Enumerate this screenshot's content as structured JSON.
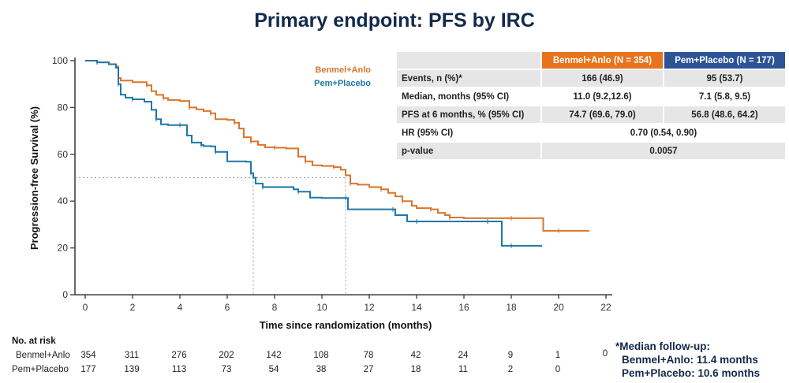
{
  "title": "Primary endpoint: PFS by IRC",
  "chart_data": {
    "type": "line",
    "subtype": "kaplan-meier-step",
    "title": "Primary endpoint: PFS by IRC",
    "xlabel": "Time since randomization (months)",
    "ylabel": "Progression-free Survival (%)",
    "xlim": [
      0,
      22
    ],
    "ylim": [
      0,
      100
    ],
    "xticks": [
      0,
      2,
      4,
      6,
      8,
      10,
      12,
      14,
      16,
      18,
      20,
      22
    ],
    "yticks": [
      0,
      20,
      40,
      60,
      80,
      100
    ],
    "grid": false,
    "legend_position": "top-right",
    "median_reference": {
      "y": 50,
      "x_values": [
        7.1,
        11.0
      ]
    },
    "series": [
      {
        "name": "Benmel+Anlo",
        "color": "#d9762b",
        "x": [
          0,
          0.5,
          1.0,
          1.3,
          1.4,
          1.5,
          2.0,
          2.6,
          2.8,
          3.0,
          3.3,
          3.5,
          4.0,
          4.4,
          4.7,
          5.0,
          5.3,
          5.5,
          6.0,
          6.3,
          6.5,
          6.7,
          7.0,
          7.3,
          7.6,
          8.0,
          8.5,
          9.0,
          9.3,
          9.6,
          10.0,
          10.5,
          10.8,
          11.0,
          11.2,
          11.5,
          12.0,
          12.5,
          12.8,
          13.1,
          13.4,
          13.8,
          14.0,
          14.6,
          14.9,
          15.2,
          15.4,
          16.0,
          17.0,
          18.0,
          19.3,
          19.35,
          20.0,
          21.3
        ],
        "y": [
          100,
          99.3,
          98.5,
          97.5,
          92.6,
          91.5,
          90.8,
          89.5,
          87,
          85.4,
          84,
          83.2,
          82.8,
          80,
          79.2,
          78.5,
          77.5,
          75,
          74.7,
          73.5,
          71,
          67.3,
          65.5,
          64,
          63,
          62.8,
          62.5,
          59,
          57,
          55.3,
          55,
          54.5,
          53.4,
          51,
          47.5,
          47,
          46,
          45,
          43.5,
          42,
          40,
          38,
          37,
          36.5,
          35,
          34,
          33,
          32.7,
          32.7,
          32.7,
          32.7,
          27.3,
          27.3,
          27.3
        ]
      },
      {
        "name": "Pem+Placebo",
        "color": "#1f77a8",
        "x": [
          0,
          0.5,
          1.0,
          1.3,
          1.4,
          1.5,
          1.7,
          2.0,
          2.5,
          2.8,
          3.0,
          3.2,
          3.5,
          4.0,
          4.3,
          4.5,
          4.9,
          5.0,
          5.3,
          5.5,
          6.0,
          6.8,
          7.0,
          7.1,
          7.2,
          7.5,
          8.0,
          8.8,
          9.0,
          9.5,
          10.0,
          11.0,
          11.1,
          12.0,
          13.0,
          13.1,
          13.6,
          14.0,
          15.0,
          16.0,
          17.0,
          17.5,
          17.6,
          18.0,
          19.3
        ],
        "y": [
          100,
          99.3,
          98.5,
          97,
          90,
          85.5,
          84.2,
          83.5,
          82.5,
          79,
          75,
          72.8,
          72.5,
          72.5,
          68,
          65,
          64,
          63.5,
          63.4,
          61,
          57,
          56.8,
          52,
          50,
          47.5,
          46,
          46,
          45,
          44,
          41.5,
          41.3,
          41.3,
          36.5,
          36.5,
          36.5,
          34,
          31.3,
          31.3,
          31.3,
          31.3,
          31.3,
          31.3,
          20.9,
          20.9,
          20.9
        ]
      }
    ],
    "at_risk": {
      "header": "No. at risk",
      "times": [
        0,
        2,
        4,
        6,
        8,
        10,
        12,
        14,
        16,
        18,
        20,
        22
      ],
      "rows": [
        {
          "name": "Benmel+Anlo",
          "values": [
            354,
            311,
            276,
            202,
            142,
            108,
            78,
            42,
            24,
            9,
            1,
            0
          ]
        },
        {
          "name": "Pem+Placebo",
          "values": [
            177,
            139,
            113,
            73,
            54,
            38,
            27,
            18,
            11,
            2,
            0,
            null
          ]
        }
      ]
    }
  },
  "stats_table": {
    "headers": [
      "",
      "Benmel+Anlo (N  = 354)",
      "Pem+Placebo (N = 177)"
    ],
    "header_colors": {
      "benmel": "#e8731c",
      "pem": "#2d5497"
    },
    "rows": [
      {
        "label": "Events, n (%)*",
        "benmel": "166 (46.9)",
        "pem": "95 (53.7)"
      },
      {
        "label": "Median, months (95% CI)",
        "benmel": "11.0 (9.2,12.6)",
        "pem": "7.1 (5.8, 9.5)"
      },
      {
        "label": "PFS at 6 months, % (95% CI)",
        "benmel": "74.7 (69.6, 79.0)",
        "pem": "56.8 (48.6, 64.2)"
      },
      {
        "label": "HR (95% CI)",
        "combined": "0.70 (0.54, 0.90)"
      },
      {
        "label": "p-value",
        "combined": "0.0057"
      }
    ]
  },
  "footnote": {
    "line1": "*Median follow-up:",
    "line2": "Benmel+Anlo: 11.4 months",
    "line3": "Pem+Placebo: 10.6 months"
  }
}
